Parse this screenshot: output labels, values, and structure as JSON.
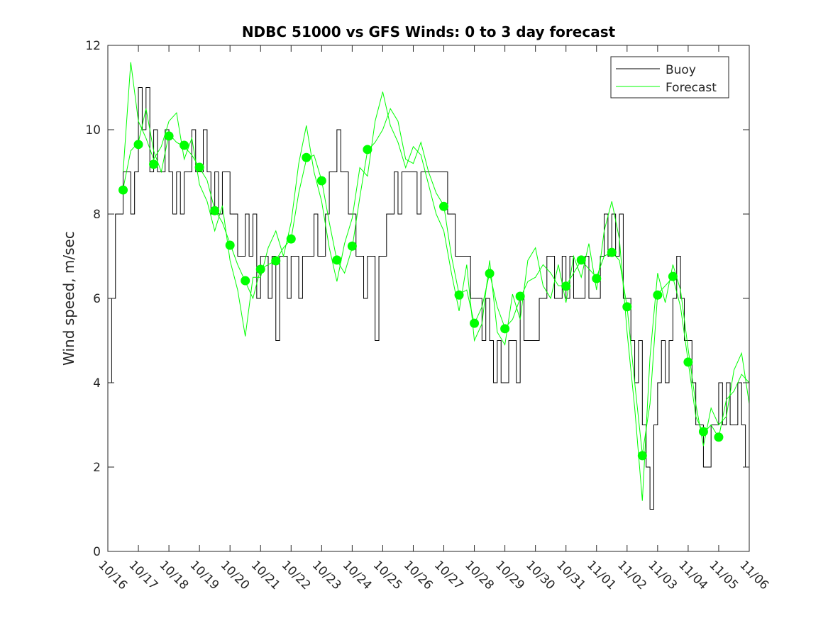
{
  "chart_data": {
    "type": "line",
    "title": "NDBC 51000 vs GFS Winds: 0 to 3 day forecast",
    "xlabel": "",
    "ylabel": "Wind speed, m/sec",
    "xlim": [
      0,
      21
    ],
    "ylim": [
      0,
      12
    ],
    "x_units": "days since 10/16",
    "x_tick_labels": [
      "10/16",
      "10/17",
      "10/18",
      "10/19",
      "10/20",
      "10/21",
      "10/22",
      "10/23",
      "10/24",
      "10/25",
      "10/26",
      "10/27",
      "10/28",
      "10/29",
      "10/30",
      "10/31",
      "11/01",
      "11/02",
      "11/03",
      "11/04",
      "11/05",
      "11/06"
    ],
    "y_ticks": [
      0,
      2,
      4,
      6,
      8,
      10,
      12
    ],
    "grid": false,
    "legend": {
      "placement": "top-right",
      "entries": [
        "Buoy",
        "Forecast"
      ]
    },
    "colors": {
      "buoy": "#000000",
      "forecast": "#00ff00",
      "axes": "#262626"
    },
    "buoy": {
      "name": "Buoy",
      "x_start": 0,
      "x_step": 0.125,
      "values": [
        4,
        6,
        8,
        8,
        9,
        9,
        8,
        9,
        11,
        10,
        11,
        9,
        10,
        9,
        9,
        10,
        9,
        8,
        9,
        8,
        9,
        9,
        10,
        9,
        9,
        10,
        9,
        8,
        9,
        8,
        9,
        9,
        8,
        8,
        7,
        7,
        8,
        7,
        8,
        6,
        7,
        7,
        6,
        7,
        5,
        7,
        7,
        6,
        7,
        7,
        6,
        7,
        7,
        7,
        8,
        7,
        7,
        8,
        9,
        9,
        10,
        9,
        9,
        8,
        8,
        7,
        7,
        6,
        7,
        7,
        5,
        7,
        7,
        8,
        8,
        9,
        8,
        9,
        9,
        9,
        9,
        8,
        9,
        9,
        9,
        9,
        9,
        9,
        9,
        8,
        8,
        7,
        7,
        7,
        7,
        6,
        6,
        6,
        5,
        6,
        5,
        4,
        5,
        4,
        4,
        5,
        5,
        4,
        6,
        5,
        5,
        5,
        5,
        6,
        6,
        7,
        7,
        6,
        6,
        7,
        6,
        7,
        6,
        6,
        6,
        7,
        6,
        6,
        6,
        7,
        8,
        7,
        8,
        7,
        8,
        6,
        6,
        5,
        4,
        5,
        3,
        2,
        1,
        3,
        4,
        5,
        4,
        5,
        6,
        7,
        6,
        5,
        5,
        4,
        3,
        3,
        2,
        2,
        3,
        3,
        4,
        3,
        4,
        3,
        3,
        4,
        3,
        2,
        4
      ]
    },
    "forecast_series": [
      {
        "name": "Forecast",
        "x_start": 0.5,
        "x_step": 0.25,
        "values": [
          8.6,
          9.5,
          9.7,
          10.5,
          9.5,
          9.0,
          9.9,
          9.7,
          9.6,
          9.4,
          9.1,
          8.8,
          8.1,
          7.8,
          7.3,
          6.8,
          6.4,
          6.0,
          6.7,
          6.8,
          6.9,
          7.2,
          7.4,
          8.5,
          9.3,
          9.4,
          8.8,
          7.8,
          6.9,
          6.6,
          7.2,
          8.4,
          9.5,
          9.7,
          10.0,
          10.5,
          10.2,
          9.3,
          9.2,
          9.7,
          9.0,
          8.5,
          8.2,
          7.0,
          6.1,
          6.2,
          5.4,
          5.8,
          6.6,
          5.8,
          5.3,
          5.5,
          6.0,
          6.4,
          6.5,
          6.8,
          6.6,
          6.3,
          6.3,
          6.6,
          6.9,
          6.7,
          6.5,
          7.0,
          7.1,
          6.9,
          5.8,
          4.0,
          2.3,
          3.5,
          6.1,
          6.3,
          6.5,
          5.8,
          4.5,
          3.2,
          2.8,
          3.0,
          2.7,
          3.6,
          3.8,
          4.2,
          4.0
        ]
      },
      {
        "name": "Forecast",
        "x_start": 0.5,
        "x_step": 0.25,
        "values": [
          9.0,
          11.6,
          10.2,
          9.8,
          9.3,
          9.6,
          10.2,
          10.4,
          9.3,
          9.8,
          8.7,
          8.3,
          7.6,
          8.2,
          6.9,
          6.2,
          5.1,
          6.5,
          6.5,
          7.2,
          7.6,
          7.0,
          7.8,
          9.2,
          10.1,
          9.0,
          8.3,
          7.2,
          6.4,
          7.3,
          7.9,
          9.1,
          8.9,
          10.2,
          10.9,
          10.1,
          9.7,
          9.1,
          9.6,
          9.4,
          8.7,
          8.0,
          7.6,
          6.6,
          5.7,
          6.8,
          5.0,
          5.4,
          6.9,
          5.2,
          4.9,
          6.1,
          5.5,
          6.9,
          7.2,
          6.3,
          6.0,
          6.8,
          5.9,
          7.0,
          6.5,
          7.3,
          6.2,
          7.6,
          8.3,
          7.4,
          5.2,
          3.4,
          1.2,
          4.6,
          6.6,
          5.9,
          6.8,
          6.2,
          4.8,
          3.5,
          2.5,
          3.4,
          3.0,
          3.2,
          4.3,
          4.7,
          3.5
        ]
      }
    ],
    "daily_points": {
      "name": "Forecast (daily markers)",
      "x": [
        0.5,
        1,
        1.5,
        2,
        2.5,
        3,
        3.5,
        4,
        4.5,
        5,
        5.5,
        6,
        6.5,
        7,
        7.5,
        8,
        8.5,
        11,
        11.5,
        12,
        12.5,
        13,
        13.5,
        15,
        15.5,
        16,
        16.5,
        17,
        17.5,
        18,
        18.5,
        19,
        19.5,
        20
      ],
      "y": [
        8.57,
        9.65,
        9.18,
        9.85,
        9.63,
        9.11,
        8.08,
        7.26,
        6.42,
        6.69,
        6.89,
        7.41,
        9.34,
        8.79,
        6.91,
        7.24,
        9.53,
        8.18,
        6.08,
        5.41,
        6.59,
        5.28,
        6.05,
        6.29,
        6.91,
        6.47,
        7.09,
        5.8,
        2.27,
        6.08,
        6.52,
        4.49,
        2.84,
        2.71
      ]
    }
  }
}
